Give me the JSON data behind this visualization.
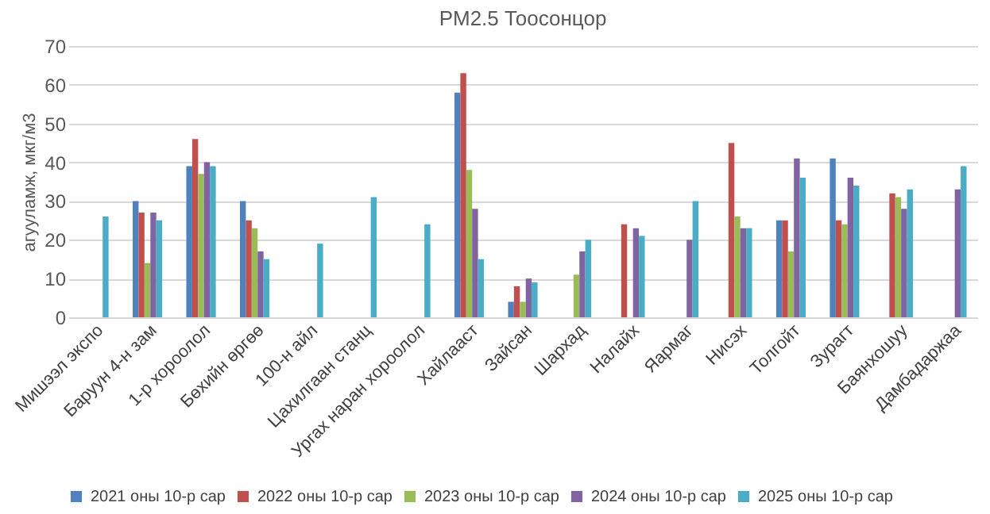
{
  "chart_data": {
    "type": "bar",
    "title": "PM2.5 Тоосонцор",
    "ylabel": "агууламж, мкг/м3",
    "categories": [
      "Мишээл экспо",
      "Баруун 4-н зам",
      "1-р хороолол",
      "Бөхийн өргөө",
      "100-н айл",
      "Цахилгаан станц",
      "Ургах наран хороолол",
      "Хайлааст",
      "Зайсан",
      "Шархад",
      "Налайх",
      "Яармаг",
      "Нисэх",
      "Толгойт",
      "Зурагт",
      "Баянхошуу",
      "Дамбадаржаа"
    ],
    "series": [
      {
        "name": "2021 оны 10-р сар",
        "color": "#4f81bd",
        "values": [
          null,
          30,
          39,
          30,
          null,
          null,
          null,
          58,
          4,
          null,
          null,
          null,
          null,
          25,
          41,
          null,
          null
        ]
      },
      {
        "name": "2022 оны 10-р сар",
        "color": "#c0504d",
        "values": [
          null,
          27,
          46,
          25,
          null,
          null,
          null,
          63,
          8,
          null,
          24,
          null,
          45,
          25,
          25,
          32,
          null
        ]
      },
      {
        "name": "2023 оны 10-р сар",
        "color": "#9bbb59",
        "values": [
          null,
          14,
          37,
          23,
          null,
          null,
          null,
          38,
          4,
          11,
          null,
          null,
          26,
          17,
          24,
          31,
          null
        ]
      },
      {
        "name": "2024 оны 10-р сар",
        "color": "#8064a2",
        "values": [
          null,
          27,
          40,
          17,
          null,
          null,
          null,
          28,
          10,
          17,
          23,
          20,
          23,
          41,
          36,
          28,
          33
        ]
      },
      {
        "name": "2025 оны 10-р сар",
        "color": "#4bacc6",
        "values": [
          26,
          25,
          39,
          15,
          19,
          31,
          24,
          15,
          9,
          20,
          21,
          30,
          23,
          36,
          34,
          33,
          39
        ]
      }
    ],
    "ylim": [
      0,
      70
    ],
    "yticks": [
      0,
      10,
      20,
      30,
      40,
      50,
      60,
      70
    ],
    "grid": "y",
    "legend": "bottom"
  }
}
